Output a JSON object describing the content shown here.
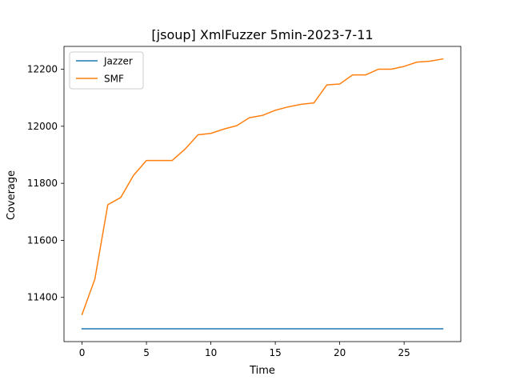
{
  "chart_data": {
    "type": "line",
    "title": "[jsoup] XmlFuzzer 5min-2023-7-11",
    "xlabel": "Time",
    "ylabel": "Coverage",
    "xlim": [
      -1.4,
      29.4
    ],
    "ylim": [
      11245,
      12280
    ],
    "x_ticks": [
      0,
      5,
      10,
      15,
      20,
      25
    ],
    "y_ticks": [
      11400,
      11600,
      11800,
      12000,
      12200
    ],
    "grid": false,
    "legend_position": "upper-left",
    "x": [
      0,
      1,
      2,
      3,
      4,
      5,
      6,
      7,
      8,
      9,
      10,
      11,
      12,
      13,
      14,
      15,
      16,
      17,
      18,
      19,
      20,
      21,
      22,
      23,
      24,
      25,
      26,
      27,
      28
    ],
    "series": [
      {
        "name": "Jazzer",
        "color": "#1f77b4",
        "values": [
          11290,
          11290,
          11290,
          11290,
          11290,
          11290,
          11290,
          11290,
          11290,
          11290,
          11290,
          11290,
          11290,
          11290,
          11290,
          11290,
          11290,
          11290,
          11290,
          11290,
          11290,
          11290,
          11290,
          11290,
          11290,
          11290,
          11290,
          11290,
          11290
        ]
      },
      {
        "name": "SMF",
        "color": "#ff7f0e",
        "values": [
          11340,
          11465,
          11725,
          11750,
          11828,
          11880,
          11880,
          11880,
          11920,
          11970,
          11975,
          11990,
          12002,
          12030,
          12038,
          12056,
          12068,
          12077,
          12082,
          12145,
          12148,
          12180,
          12180,
          12200,
          12200,
          12210,
          12225,
          12228,
          12236
        ]
      }
    ]
  }
}
